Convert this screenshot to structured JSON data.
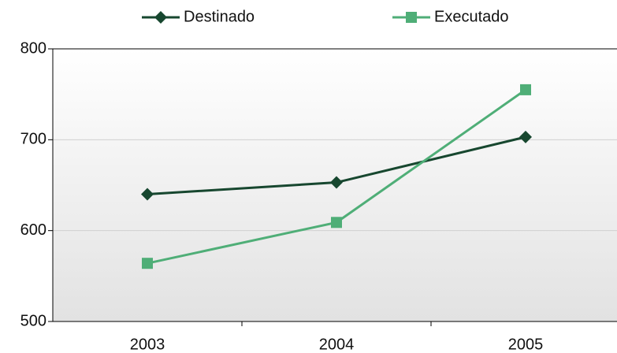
{
  "chart_data": {
    "type": "line",
    "categories": [
      "2003",
      "2004",
      "2005"
    ],
    "series": [
      {
        "name": "Destinado",
        "color": "#17472f",
        "marker": "diamond",
        "values": [
          640,
          653,
          703
        ]
      },
      {
        "name": "Executado",
        "color": "#4fae77",
        "marker": "square",
        "values": [
          564,
          609,
          755
        ]
      }
    ],
    "ylim": [
      500,
      800
    ],
    "yticks": [
      500,
      600,
      700,
      800
    ],
    "grid": true,
    "legend": "top"
  }
}
